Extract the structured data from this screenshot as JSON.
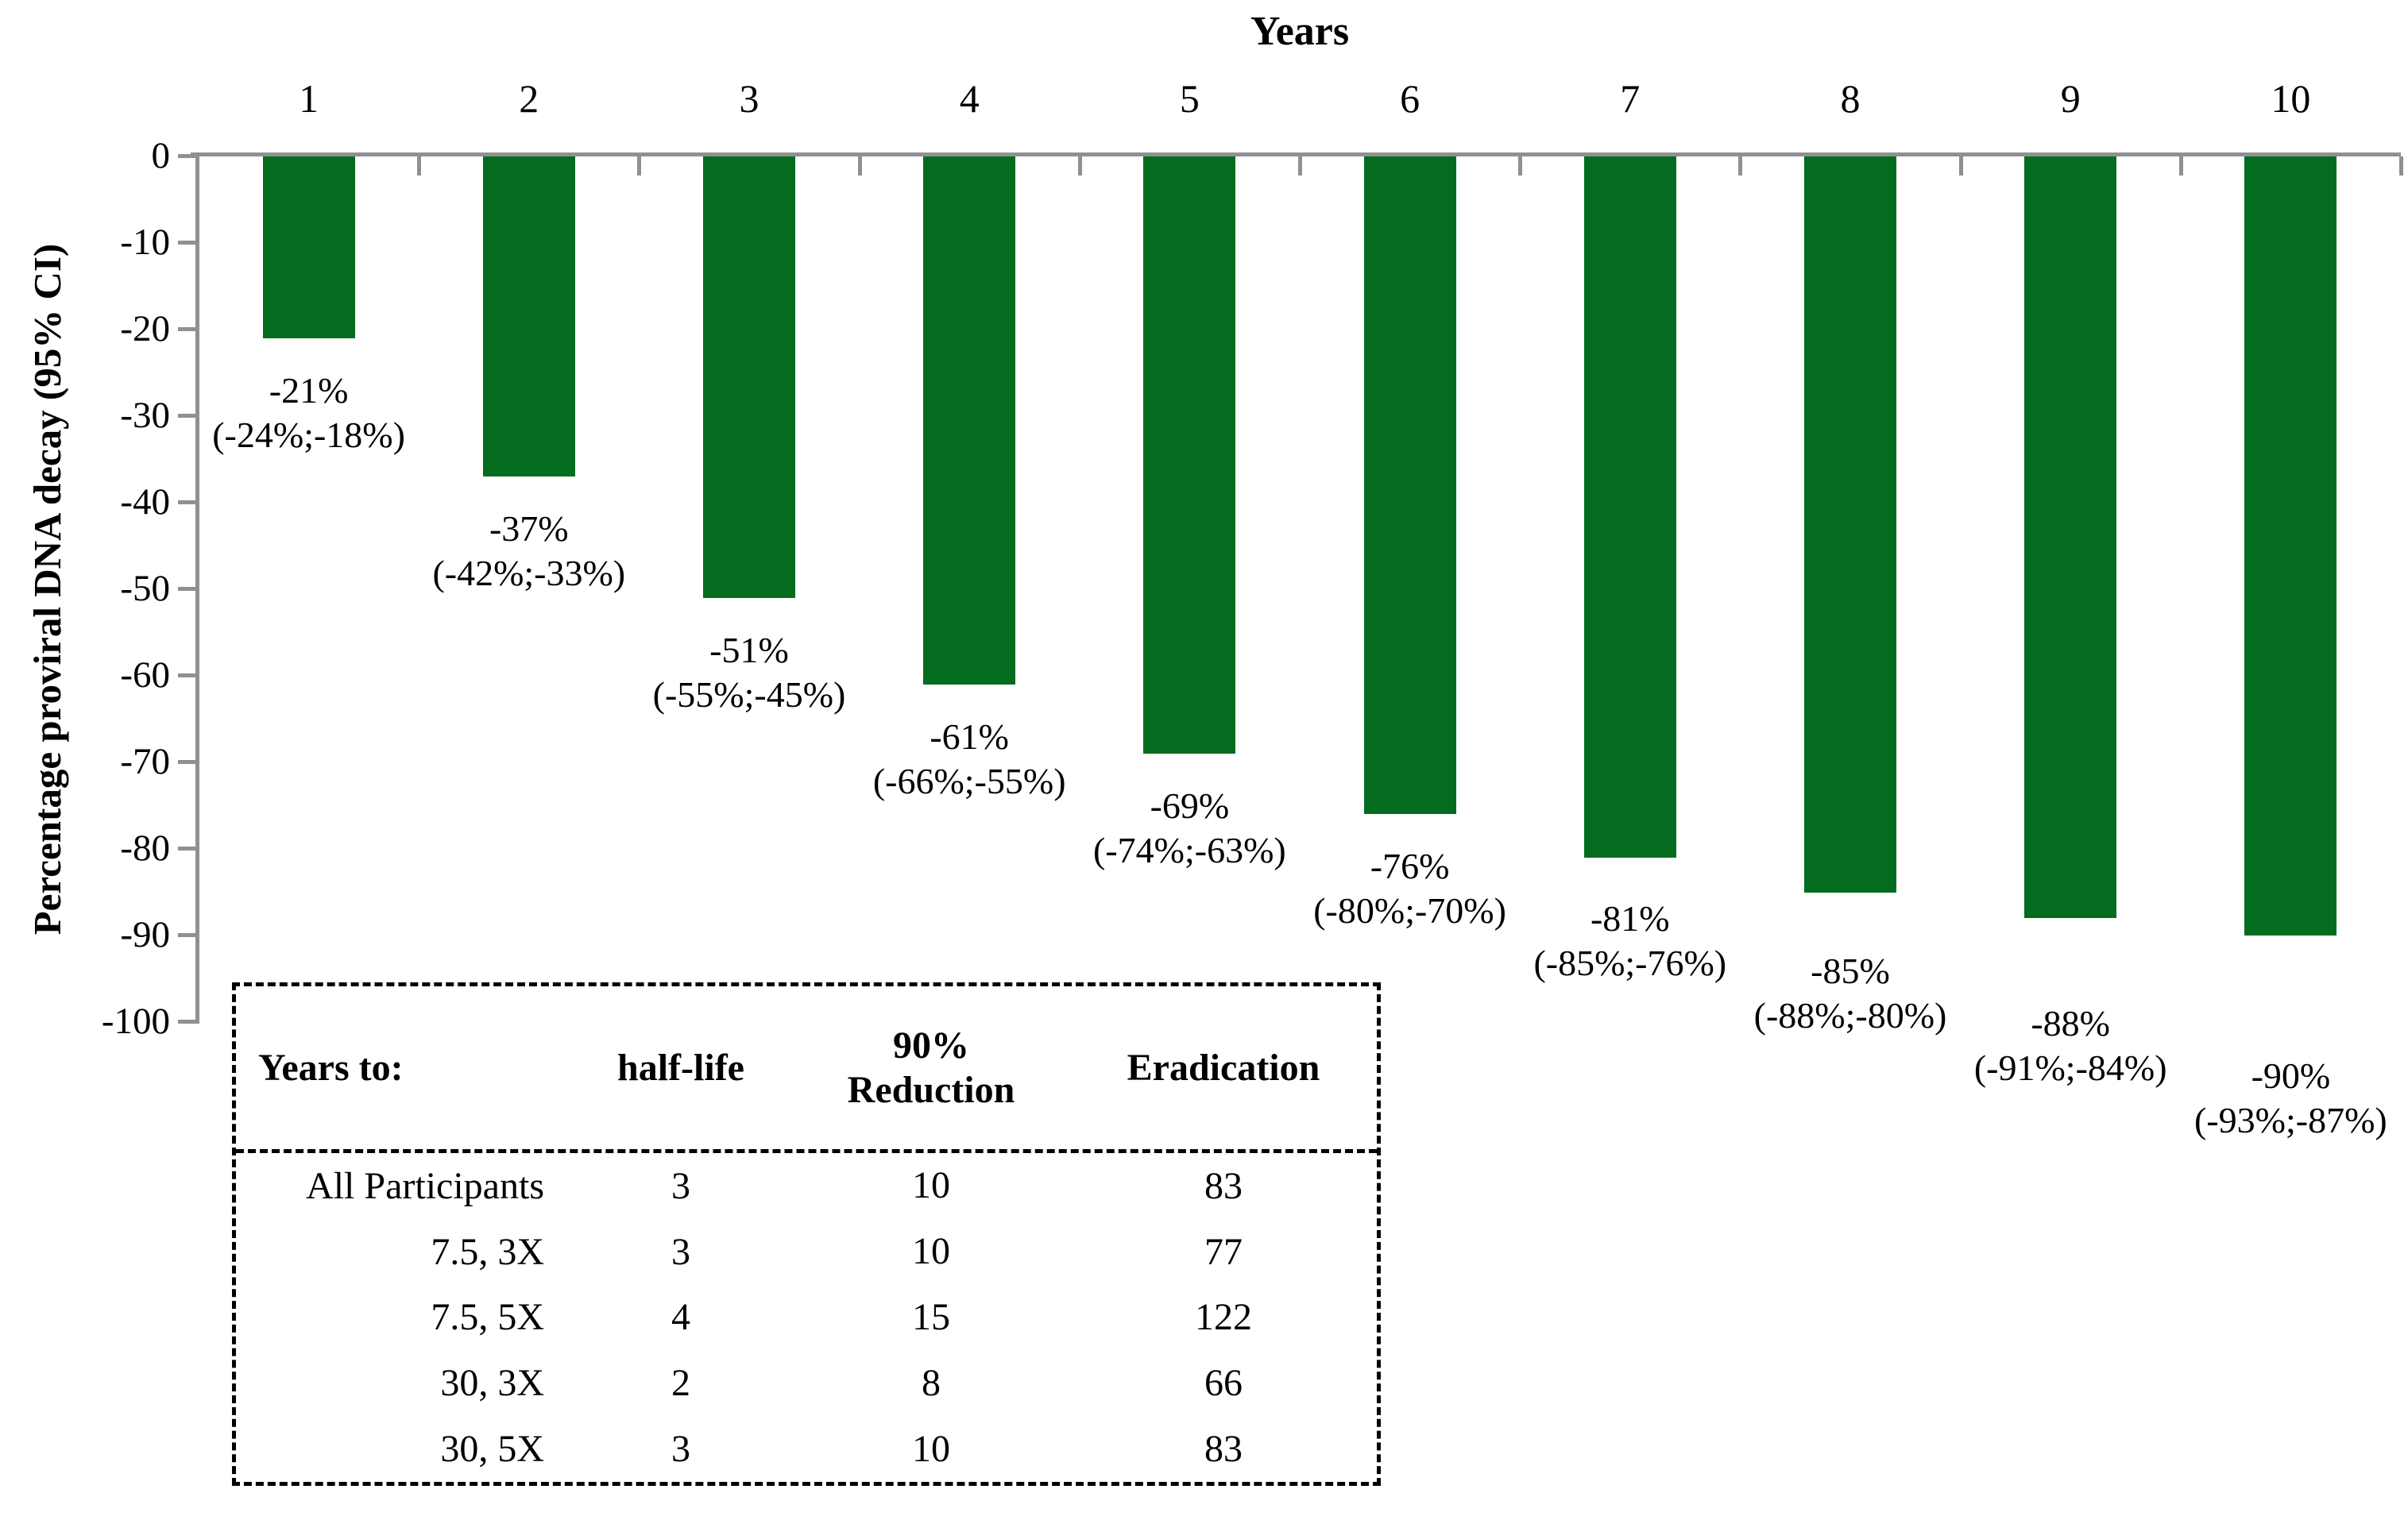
{
  "colors": {
    "bar": "#046c1e",
    "axis": "#8f9094",
    "text": "#000000"
  },
  "chart_data": {
    "type": "bar",
    "title": "Years",
    "xlabel": "Years",
    "ylabel": "Percentage proviral DNA decay (95% CI)",
    "categories": [
      "1",
      "2",
      "3",
      "4",
      "5",
      "6",
      "7",
      "8",
      "9",
      "10"
    ],
    "values": [
      -21,
      -37,
      -51,
      -61,
      -69,
      -76,
      -81,
      -85,
      -88,
      -90
    ],
    "ci_low": [
      -24,
      -42,
      -55,
      -66,
      -74,
      -80,
      -85,
      -88,
      -91,
      -93
    ],
    "ci_high": [
      -18,
      -33,
      -45,
      -55,
      -63,
      -70,
      -76,
      -80,
      -84,
      -87
    ],
    "bar_labels": [
      [
        "-21%",
        "(-24%;-18%)"
      ],
      [
        "-37%",
        "(-42%;-33%)"
      ],
      [
        "-51%",
        "(-55%;-45%)"
      ],
      [
        "-61%",
        "(-66%;-55%)"
      ],
      [
        "-69%",
        "(-74%;-63%)"
      ],
      [
        "-76%",
        "(-80%;-70%)"
      ],
      [
        "-81%",
        "(-85%;-76%)"
      ],
      [
        "-85%",
        "(-88%;-80%)"
      ],
      [
        "-88%",
        "(-91%;-84%)"
      ],
      [
        "-90%",
        "(-93%;-87%)"
      ]
    ],
    "ylim": [
      -100,
      0
    ],
    "ytick_step": 10,
    "grid": false,
    "legend": false
  },
  "inset_table": {
    "headers": [
      "Years to:",
      "half-life",
      "90%\nReduction",
      "Eradication"
    ],
    "rows": [
      [
        "All Participants",
        "3",
        "10",
        "83"
      ],
      [
        "7.5, 3X",
        "3",
        "10",
        "77"
      ],
      [
        "7.5, 5X",
        "4",
        "15",
        "122"
      ],
      [
        "30, 3X",
        "2",
        "8",
        "66"
      ],
      [
        "30, 5X",
        "3",
        "10",
        "83"
      ]
    ]
  }
}
